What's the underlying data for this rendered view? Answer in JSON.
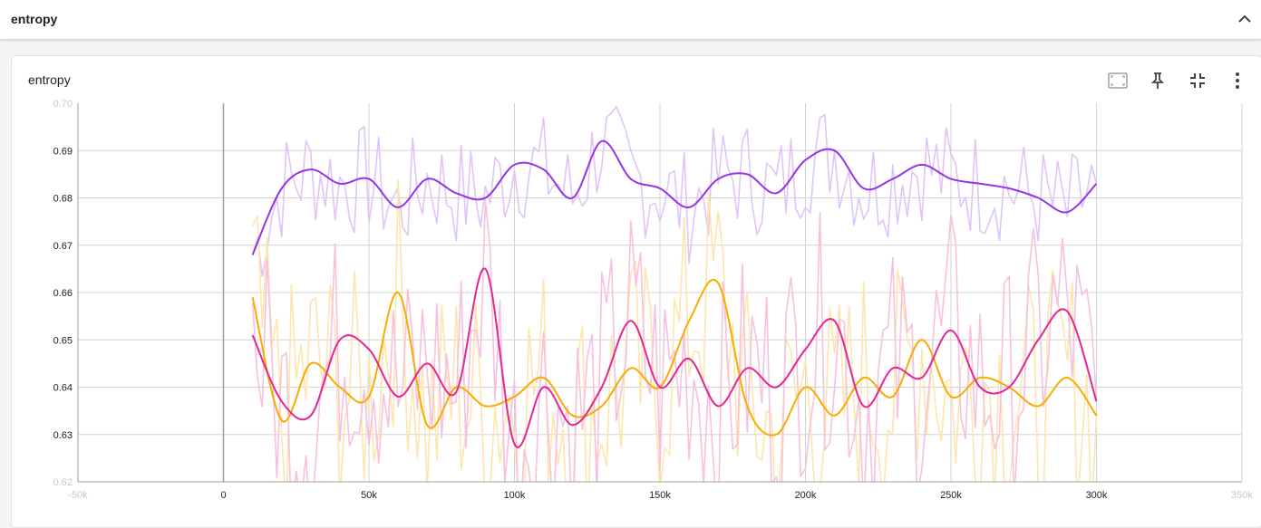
{
  "section": {
    "title": "entropy"
  },
  "card": {
    "title": "entropy"
  },
  "toolbar": {
    "items": [
      {
        "name": "fit-domain-icon"
      },
      {
        "name": "pin-icon"
      },
      {
        "name": "collapse-card-icon"
      },
      {
        "name": "more-vert-icon"
      }
    ]
  },
  "colors": {
    "purple": "#9334e6",
    "purple_raw": "#e0c4f8",
    "orange": "#f9ab00",
    "orange_raw": "#fde6ad",
    "pink": "#e52592",
    "pink_raw": "#f7c0df",
    "grid": "#d3d3d3",
    "axis": "#9e9e9e"
  },
  "chart_data": {
    "type": "line",
    "title": "",
    "xlabel": "",
    "ylabel": "",
    "xlim": [
      -50000,
      350000
    ],
    "ylim": [
      0.62,
      0.7
    ],
    "x_ticks": [
      {
        "v": -50000,
        "label": "-50k"
      },
      {
        "v": 0,
        "label": "0"
      },
      {
        "v": 50000,
        "label": "50k"
      },
      {
        "v": 100000,
        "label": "100k"
      },
      {
        "v": 150000,
        "label": "150k"
      },
      {
        "v": 200000,
        "label": "200k"
      },
      {
        "v": 250000,
        "label": "250k"
      },
      {
        "v": 300000,
        "label": "300k"
      },
      {
        "v": 350000,
        "label": "350k"
      }
    ],
    "y_ticks": [
      {
        "v": 0.62,
        "label": "0.62"
      },
      {
        "v": 0.63,
        "label": "0.63"
      },
      {
        "v": 0.64,
        "label": "0.64"
      },
      {
        "v": 0.65,
        "label": "0.65"
      },
      {
        "v": 0.66,
        "label": "0.66"
      },
      {
        "v": 0.67,
        "label": "0.67"
      },
      {
        "v": 0.68,
        "label": "0.68"
      },
      {
        "v": 0.69,
        "label": "0.69"
      },
      {
        "v": 0.7,
        "label": "0.70"
      }
    ],
    "grid": true,
    "legend": "none",
    "x": [
      10000,
      20000,
      30000,
      40000,
      50000,
      60000,
      70000,
      80000,
      90000,
      100000,
      110000,
      120000,
      130000,
      140000,
      150000,
      160000,
      170000,
      180000,
      190000,
      200000,
      210000,
      220000,
      230000,
      240000,
      250000,
      260000,
      270000,
      280000,
      290000,
      300000
    ],
    "series": [
      {
        "color_key": "purple",
        "values": [
          0.668,
          0.682,
          0.686,
          0.683,
          0.684,
          0.678,
          0.684,
          0.681,
          0.68,
          0.687,
          0.686,
          0.68,
          0.692,
          0.684,
          0.682,
          0.678,
          0.684,
          0.685,
          0.681,
          0.688,
          0.69,
          0.682,
          0.684,
          0.687,
          0.684,
          0.683,
          0.682,
          0.68,
          0.677,
          0.683
        ]
      },
      {
        "color_key": "orange",
        "values": [
          0.659,
          0.633,
          0.645,
          0.64,
          0.638,
          0.66,
          0.632,
          0.64,
          0.636,
          0.638,
          0.642,
          0.634,
          0.636,
          0.644,
          0.64,
          0.654,
          0.662,
          0.636,
          0.63,
          0.64,
          0.634,
          0.642,
          0.638,
          0.65,
          0.638,
          0.642,
          0.64,
          0.636,
          0.642,
          0.634
        ]
      },
      {
        "color_key": "pink",
        "values": [
          0.651,
          0.637,
          0.634,
          0.65,
          0.648,
          0.638,
          0.645,
          0.639,
          0.665,
          0.628,
          0.64,
          0.632,
          0.64,
          0.654,
          0.64,
          0.646,
          0.636,
          0.644,
          0.64,
          0.648,
          0.654,
          0.636,
          0.644,
          0.642,
          0.652,
          0.64,
          0.64,
          0.65,
          0.656,
          0.637
        ]
      }
    ]
  }
}
